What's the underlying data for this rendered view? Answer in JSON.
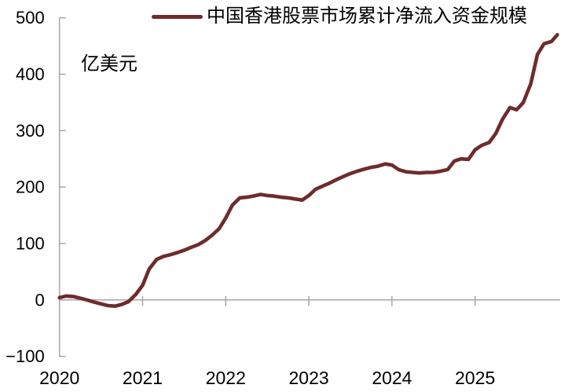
{
  "chart": {
    "unit_label": "亿美元",
    "legend_label": "中国香港股票市场累计净流入资金规模",
    "colors": {
      "series": "#6E2C2D",
      "axis": "#A6A6A6",
      "text": "#000000"
    }
  },
  "chart_data": {
    "type": "line",
    "title": "",
    "ylabel": "亿美元",
    "xlabel": "",
    "ylim": [
      -100,
      500
    ],
    "xlim": [
      2020,
      2026.03
    ],
    "grid": "zero-baseline-only",
    "legend_position": "top-center",
    "x_ticks": [
      2020,
      2021,
      2022,
      2023,
      2024,
      2025
    ],
    "x_tick_labels": [
      "2020",
      "2021",
      "2022",
      "2023",
      "2024",
      "2025"
    ],
    "y_ticks": [
      500,
      400,
      300,
      200,
      100,
      0,
      -100
    ],
    "y_tick_labels": [
      "500",
      "400",
      "300",
      "200",
      "100",
      "0",
      "−100"
    ],
    "series": [
      {
        "name": "中国香港股票市场累计净流入资金规模",
        "color": "#6E2C2D",
        "points": [
          [
            2020.0,
            4
          ],
          [
            2020.08,
            7
          ],
          [
            2020.17,
            6
          ],
          [
            2020.25,
            3
          ],
          [
            2020.33,
            0
          ],
          [
            2020.42,
            -4
          ],
          [
            2020.5,
            -7
          ],
          [
            2020.58,
            -10
          ],
          [
            2020.67,
            -11
          ],
          [
            2020.75,
            -8
          ],
          [
            2020.83,
            -3
          ],
          [
            2020.92,
            10
          ],
          [
            2021.0,
            26
          ],
          [
            2021.08,
            55
          ],
          [
            2021.17,
            72
          ],
          [
            2021.25,
            77
          ],
          [
            2021.33,
            80
          ],
          [
            2021.42,
            84
          ],
          [
            2021.5,
            88
          ],
          [
            2021.58,
            93
          ],
          [
            2021.67,
            98
          ],
          [
            2021.75,
            105
          ],
          [
            2021.83,
            114
          ],
          [
            2021.92,
            126
          ],
          [
            2022.0,
            145
          ],
          [
            2022.08,
            168
          ],
          [
            2022.17,
            181
          ],
          [
            2022.25,
            182
          ],
          [
            2022.33,
            184
          ],
          [
            2022.42,
            187
          ],
          [
            2022.5,
            185
          ],
          [
            2022.58,
            184
          ],
          [
            2022.67,
            182
          ],
          [
            2022.75,
            181
          ],
          [
            2022.83,
            179
          ],
          [
            2022.92,
            177
          ],
          [
            2023.0,
            185
          ],
          [
            2023.08,
            196
          ],
          [
            2023.17,
            202
          ],
          [
            2023.25,
            207
          ],
          [
            2023.33,
            213
          ],
          [
            2023.42,
            219
          ],
          [
            2023.5,
            224
          ],
          [
            2023.58,
            228
          ],
          [
            2023.67,
            232
          ],
          [
            2023.75,
            235
          ],
          [
            2023.83,
            237
          ],
          [
            2023.92,
            241
          ],
          [
            2024.0,
            239
          ],
          [
            2024.08,
            231
          ],
          [
            2024.17,
            227
          ],
          [
            2024.25,
            226
          ],
          [
            2024.33,
            225
          ],
          [
            2024.42,
            226
          ],
          [
            2024.5,
            226
          ],
          [
            2024.58,
            228
          ],
          [
            2024.67,
            231
          ],
          [
            2024.75,
            246
          ],
          [
            2024.83,
            250
          ],
          [
            2024.92,
            249
          ],
          [
            2025.0,
            266
          ],
          [
            2025.08,
            274
          ],
          [
            2025.17,
            279
          ],
          [
            2025.25,
            295
          ],
          [
            2025.33,
            320
          ],
          [
            2025.42,
            341
          ],
          [
            2025.5,
            337
          ],
          [
            2025.58,
            350
          ],
          [
            2025.67,
            383
          ],
          [
            2025.75,
            435
          ],
          [
            2025.83,
            454
          ],
          [
            2025.92,
            458
          ],
          [
            2025.99,
            470
          ]
        ]
      }
    ]
  }
}
